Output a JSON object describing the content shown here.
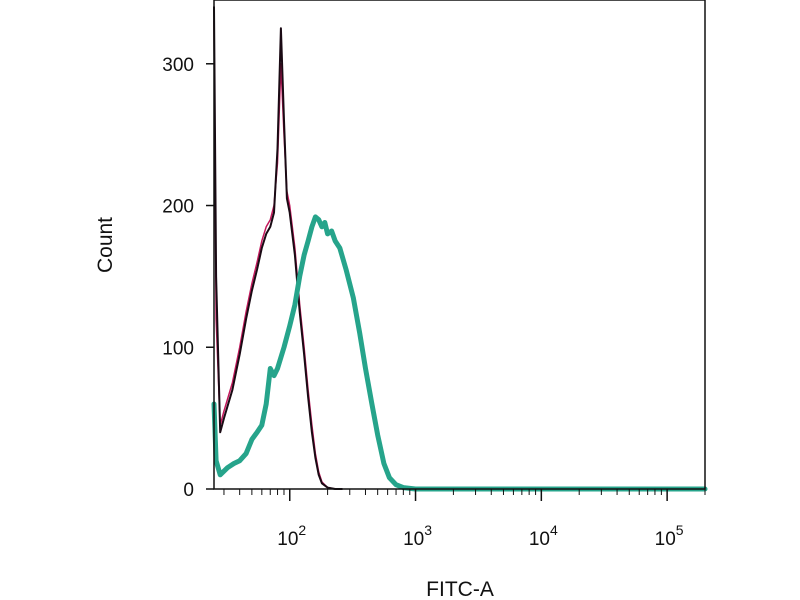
{
  "chart_data": {
    "type": "line",
    "title": "",
    "xlabel": "FITC-A",
    "ylabel": "Count",
    "x_scale": "log",
    "xlim": [
      25,
      200000
    ],
    "ylim": [
      0,
      345
    ],
    "grid": false,
    "legend": "none",
    "y_ticks": [
      {
        "value": 0,
        "label": "0"
      },
      {
        "value": 100,
        "label": "100"
      },
      {
        "value": 200,
        "label": "200"
      },
      {
        "value": 300,
        "label": "300"
      }
    ],
    "x_ticks": [
      {
        "value": 100,
        "base": "10",
        "exp": "2"
      },
      {
        "value": 1000,
        "base": "10",
        "exp": "3"
      },
      {
        "value": 10000,
        "base": "10",
        "exp": "4"
      },
      {
        "value": 100000,
        "base": "10",
        "exp": "5"
      }
    ],
    "series": [
      {
        "color": "#c2185b",
        "width": 1.5,
        "x": [
          25,
          26,
          28,
          30,
          35,
          40,
          45,
          50,
          55,
          60,
          65,
          70,
          75,
          80,
          85,
          90,
          95,
          100,
          110,
          120,
          130,
          140,
          150,
          160,
          170,
          180,
          200,
          230,
          260
        ],
        "y": [
          330,
          120,
          45,
          55,
          75,
          100,
          125,
          145,
          160,
          175,
          185,
          190,
          200,
          230,
          300,
          250,
          210,
          200,
          170,
          130,
          100,
          70,
          45,
          25,
          12,
          5,
          1,
          0,
          0
        ]
      },
      {
        "color": "#1a0a14",
        "width": 2,
        "x": [
          25,
          26,
          28,
          30,
          35,
          40,
          45,
          50,
          55,
          60,
          65,
          70,
          75,
          80,
          85,
          90,
          95,
          100,
          110,
          120,
          130,
          140,
          150,
          160,
          170,
          180,
          200,
          230,
          260
        ],
        "y": [
          340,
          150,
          40,
          50,
          70,
          95,
          120,
          140,
          155,
          170,
          180,
          185,
          195,
          240,
          325,
          260,
          205,
          195,
          165,
          125,
          95,
          65,
          40,
          22,
          10,
          4,
          1,
          0,
          0
        ]
      },
      {
        "color": "#26a48b",
        "width": 5,
        "x": [
          25,
          26,
          28,
          32,
          36,
          40,
          45,
          50,
          55,
          60,
          65,
          70,
          75,
          80,
          90,
          100,
          110,
          120,
          130,
          140,
          150,
          160,
          170,
          180,
          190,
          200,
          215,
          230,
          250,
          280,
          320,
          360,
          400,
          450,
          500,
          560,
          620,
          700,
          800,
          1000,
          1500,
          3000,
          200000
        ],
        "y": [
          60,
          20,
          10,
          15,
          18,
          20,
          25,
          35,
          40,
          45,
          60,
          85,
          80,
          85,
          100,
          115,
          130,
          150,
          165,
          175,
          185,
          192,
          190,
          185,
          188,
          180,
          182,
          175,
          170,
          155,
          135,
          110,
          85,
          60,
          38,
          18,
          8,
          3,
          1,
          0,
          0,
          0,
          0
        ]
      }
    ]
  }
}
